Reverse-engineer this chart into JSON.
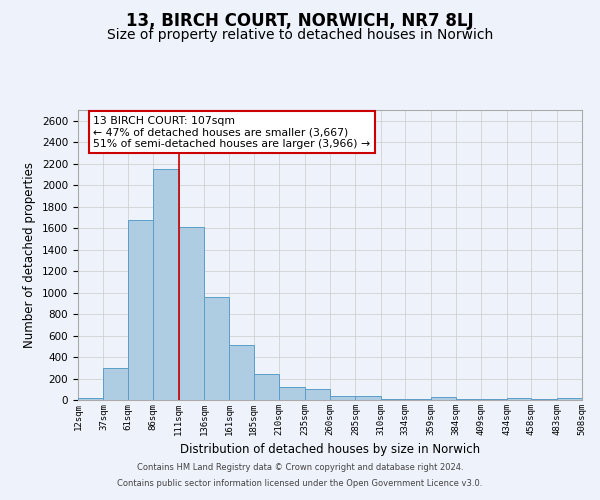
{
  "title": "13, BIRCH COURT, NORWICH, NR7 8LJ",
  "subtitle": "Size of property relative to detached houses in Norwich",
  "xlabel": "Distribution of detached houses by size in Norwich",
  "ylabel": "Number of detached properties",
  "footnote1": "Contains HM Land Registry data © Crown copyright and database right 2024.",
  "footnote2": "Contains public sector information licensed under the Open Government Licence v3.0.",
  "annotation_title": "13 BIRCH COURT: 107sqm",
  "annotation_line1": "← 47% of detached houses are smaller (3,667)",
  "annotation_line2": "51% of semi-detached houses are larger (3,966) →",
  "bar_edges": [
    12,
    37,
    61,
    86,
    111,
    136,
    161,
    185,
    210,
    235,
    260,
    285,
    310,
    334,
    359,
    384,
    409,
    434,
    458,
    483,
    508
  ],
  "bar_heights": [
    20,
    300,
    1680,
    2150,
    1610,
    960,
    510,
    245,
    120,
    100,
    35,
    35,
    10,
    10,
    30,
    5,
    5,
    20,
    5,
    20
  ],
  "bar_color": "#aecde3",
  "bar_edge_color": "#5b9ec9",
  "red_line_x": 111,
  "ylim": [
    0,
    2700
  ],
  "yticks": [
    0,
    200,
    400,
    600,
    800,
    1000,
    1200,
    1400,
    1600,
    1800,
    2000,
    2200,
    2400,
    2600
  ],
  "xtick_labels": [
    "12sqm",
    "37sqm",
    "61sqm",
    "86sqm",
    "111sqm",
    "136sqm",
    "161sqm",
    "185sqm",
    "210sqm",
    "235sqm",
    "260sqm",
    "285sqm",
    "310sqm",
    "334sqm",
    "359sqm",
    "384sqm",
    "409sqm",
    "434sqm",
    "458sqm",
    "483sqm",
    "508sqm"
  ],
  "grid_color": "#cccccc",
  "background_color": "#eef2fa",
  "title_fontsize": 12,
  "subtitle_fontsize": 10,
  "annotation_box_color": "#ffffff",
  "annotation_box_edge": "#cc0000"
}
